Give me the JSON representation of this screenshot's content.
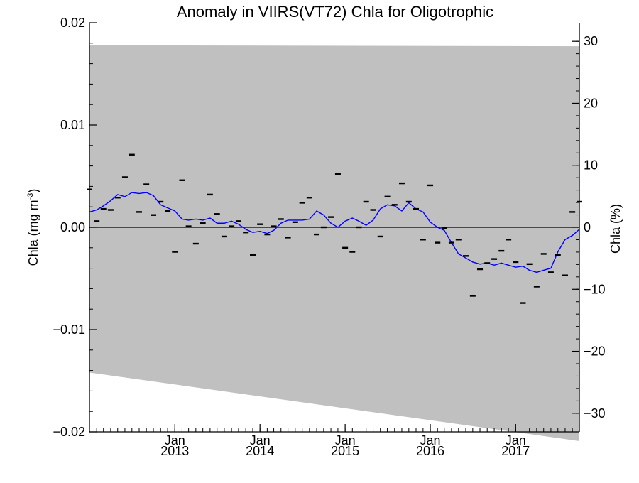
{
  "chart_data": {
    "type": "line",
    "title": "Anomaly in VIIRS(VT72) Chla for Oligotrophic",
    "ylabel": "Chla (mg m",
    "ylabel_sup": "-3",
    "ylabel_close": ")",
    "ylabel_right": "Chla (%)",
    "ylim": [
      -0.02,
      0.02
    ],
    "ylim_right": [
      -33,
      33
    ],
    "xlim": [
      "2012-01-01",
      "2017-10-01"
    ],
    "y_ticks": [
      "0.02",
      "0.01",
      "0.00",
      "-0.01",
      "-0.02"
    ],
    "y_tick_values": [
      0.02,
      0.01,
      0.0,
      -0.01,
      -0.02
    ],
    "y_right_ticks": [
      "30",
      "20",
      "10",
      "0",
      "-10",
      "-20",
      "-30"
    ],
    "y_right_tick_values": [
      30,
      20,
      10,
      0,
      -10,
      -20,
      -30
    ],
    "x_ticks": [
      {
        "month": "Jan",
        "year": "2013",
        "date": "2013-01-01"
      },
      {
        "month": "Jan",
        "year": "2014",
        "date": "2014-01-01"
      },
      {
        "month": "Jan",
        "year": "2015",
        "date": "2015-01-01"
      },
      {
        "month": "Jan",
        "year": "2016",
        "date": "2016-01-01"
      },
      {
        "month": "Jan",
        "year": "2017",
        "date": "2017-01-01"
      }
    ],
    "grid": false,
    "band": {
      "name": "uncertainty",
      "color": "#c0c0c0",
      "upper": [
        {
          "x": "2012-01-01",
          "y": 0.0178
        },
        {
          "x": "2017-10-01",
          "y": 0.0177
        }
      ],
      "lower": [
        {
          "x": "2012-01-01",
          "y": -0.0142
        },
        {
          "x": "2017-10-01",
          "y": -0.0209
        }
      ]
    },
    "zero_line": 0.0,
    "series": [
      {
        "kind": "line",
        "color": "#0000ff",
        "points": [
          {
            "x": "2012-01-01",
            "y": 0.0015
          },
          {
            "x": "2012-02-01",
            "y": 0.0017
          },
          {
            "x": "2012-03-01",
            "y": 0.0021
          },
          {
            "x": "2012-04-01",
            "y": 0.0026
          },
          {
            "x": "2012-05-01",
            "y": 0.0032
          },
          {
            "x": "2012-06-01",
            "y": 0.003
          },
          {
            "x": "2012-07-01",
            "y": 0.0034
          },
          {
            "x": "2012-08-01",
            "y": 0.0033
          },
          {
            "x": "2012-09-01",
            "y": 0.0034
          },
          {
            "x": "2012-10-01",
            "y": 0.0031
          },
          {
            "x": "2012-11-01",
            "y": 0.0022
          },
          {
            "x": "2012-12-01",
            "y": 0.0019
          },
          {
            "x": "2013-01-01",
            "y": 0.0016
          },
          {
            "x": "2013-02-01",
            "y": 0.0008
          },
          {
            "x": "2013-03-01",
            "y": 0.0007
          },
          {
            "x": "2013-04-01",
            "y": 0.0008
          },
          {
            "x": "2013-05-01",
            "y": 0.0007
          },
          {
            "x": "2013-06-01",
            "y": 0.0009
          },
          {
            "x": "2013-07-01",
            "y": 0.0004
          },
          {
            "x": "2013-08-01",
            "y": 0.0004
          },
          {
            "x": "2013-09-01",
            "y": 0.0006
          },
          {
            "x": "2013-10-01",
            "y": 0.0003
          },
          {
            "x": "2013-11-01",
            "y": -0.0002
          },
          {
            "x": "2013-12-01",
            "y": -0.0005
          },
          {
            "x": "2014-01-01",
            "y": -0.0004
          },
          {
            "x": "2014-02-01",
            "y": -0.0006
          },
          {
            "x": "2014-03-01",
            "y": -0.0003
          },
          {
            "x": "2014-04-01",
            "y": 0.0004
          },
          {
            "x": "2014-05-01",
            "y": 0.0007
          },
          {
            "x": "2014-06-01",
            "y": 0.0007
          },
          {
            "x": "2014-07-01",
            "y": 0.0007
          },
          {
            "x": "2014-08-01",
            "y": 0.0008
          },
          {
            "x": "2014-09-01",
            "y": 0.0016
          },
          {
            "x": "2014-10-01",
            "y": 0.0012
          },
          {
            "x": "2014-11-01",
            "y": 0.0004
          },
          {
            "x": "2014-12-01",
            "y": 0.0
          },
          {
            "x": "2015-01-01",
            "y": 0.0006
          },
          {
            "x": "2015-02-01",
            "y": 0.0009
          },
          {
            "x": "2015-03-01",
            "y": 0.0006
          },
          {
            "x": "2015-04-01",
            "y": 0.0002
          },
          {
            "x": "2015-05-01",
            "y": 0.0007
          },
          {
            "x": "2015-06-01",
            "y": 0.0018
          },
          {
            "x": "2015-07-01",
            "y": 0.0022
          },
          {
            "x": "2015-08-01",
            "y": 0.0021
          },
          {
            "x": "2015-09-01",
            "y": 0.0016
          },
          {
            "x": "2015-10-01",
            "y": 0.0024
          },
          {
            "x": "2015-11-01",
            "y": 0.0018
          },
          {
            "x": "2015-12-01",
            "y": 0.0015
          },
          {
            "x": "2016-01-01",
            "y": 0.0005
          },
          {
            "x": "2016-02-01",
            "y": 0.0
          },
          {
            "x": "2016-03-01",
            "y": -0.0003
          },
          {
            "x": "2016-04-01",
            "y": -0.0015
          },
          {
            "x": "2016-05-01",
            "y": -0.0026
          },
          {
            "x": "2016-06-01",
            "y": -0.003
          },
          {
            "x": "2016-07-01",
            "y": -0.0034
          },
          {
            "x": "2016-08-01",
            "y": -0.0036
          },
          {
            "x": "2016-09-01",
            "y": -0.0035
          },
          {
            "x": "2016-10-01",
            "y": -0.0037
          },
          {
            "x": "2016-11-01",
            "y": -0.0035
          },
          {
            "x": "2016-12-01",
            "y": -0.0037
          },
          {
            "x": "2017-01-01",
            "y": -0.0039
          },
          {
            "x": "2017-02-01",
            "y": -0.0038
          },
          {
            "x": "2017-03-01",
            "y": -0.0042
          },
          {
            "x": "2017-04-01",
            "y": -0.0044
          },
          {
            "x": "2017-05-01",
            "y": -0.0042
          },
          {
            "x": "2017-06-01",
            "y": -0.004
          },
          {
            "x": "2017-07-01",
            "y": -0.0024
          },
          {
            "x": "2017-08-01",
            "y": -0.0012
          },
          {
            "x": "2017-09-01",
            "y": -0.0008
          },
          {
            "x": "2017-10-01",
            "y": -0.0002
          }
        ]
      },
      {
        "kind": "dash-markers",
        "color": "#000000",
        "points": [
          {
            "x": "2012-01-01",
            "y": 0.0037
          },
          {
            "x": "2012-02-01",
            "y": 0.0006
          },
          {
            "x": "2012-03-01",
            "y": 0.0018
          },
          {
            "x": "2012-04-01",
            "y": 0.0017
          },
          {
            "x": "2012-05-01",
            "y": 0.0029
          },
          {
            "x": "2012-06-01",
            "y": 0.0049
          },
          {
            "x": "2012-07-01",
            "y": 0.0071
          },
          {
            "x": "2012-08-01",
            "y": 0.0015
          },
          {
            "x": "2012-09-01",
            "y": 0.0042
          },
          {
            "x": "2012-10-01",
            "y": 0.0012
          },
          {
            "x": "2012-11-01",
            "y": 0.0025
          },
          {
            "x": "2012-12-01",
            "y": 0.0016
          },
          {
            "x": "2013-01-01",
            "y": -0.0024
          },
          {
            "x": "2013-02-01",
            "y": 0.0046
          },
          {
            "x": "2013-03-01",
            "y": 0.0001
          },
          {
            "x": "2013-04-01",
            "y": -0.0016
          },
          {
            "x": "2013-05-01",
            "y": 0.0004
          },
          {
            "x": "2013-06-01",
            "y": 0.0032
          },
          {
            "x": "2013-07-01",
            "y": 0.0013
          },
          {
            "x": "2013-08-01",
            "y": -0.0009
          },
          {
            "x": "2013-09-01",
            "y": 0.0001
          },
          {
            "x": "2013-10-01",
            "y": 0.0006
          },
          {
            "x": "2013-11-01",
            "y": -0.0005
          },
          {
            "x": "2013-12-01",
            "y": -0.0027
          },
          {
            "x": "2014-01-01",
            "y": 0.0003
          },
          {
            "x": "2014-02-01",
            "y": -0.0007
          },
          {
            "x": "2014-03-01",
            "y": 0.0001
          },
          {
            "x": "2014-04-01",
            "y": 0.0008
          },
          {
            "x": "2014-05-01",
            "y": -0.001
          },
          {
            "x": "2014-06-01",
            "y": 0.0005
          },
          {
            "x": "2014-07-01",
            "y": 0.0024
          },
          {
            "x": "2014-08-01",
            "y": 0.0029
          },
          {
            "x": "2014-09-01",
            "y": -0.0007
          },
          {
            "x": "2014-10-01",
            "y": 0.0
          },
          {
            "x": "2014-11-01",
            "y": 0.001
          },
          {
            "x": "2014-12-01",
            "y": 0.0052
          },
          {
            "x": "2015-01-01",
            "y": -0.002
          },
          {
            "x": "2015-02-01",
            "y": -0.0024
          },
          {
            "x": "2015-03-01",
            "y": 0.0
          },
          {
            "x": "2015-04-01",
            "y": 0.0025
          },
          {
            "x": "2015-05-01",
            "y": 0.0017
          },
          {
            "x": "2015-06-01",
            "y": -0.0009
          },
          {
            "x": "2015-07-01",
            "y": 0.003
          },
          {
            "x": "2015-08-01",
            "y": 0.0022
          },
          {
            "x": "2015-09-01",
            "y": 0.0043
          },
          {
            "x": "2015-10-01",
            "y": 0.0025
          },
          {
            "x": "2015-11-01",
            "y": 0.0018
          },
          {
            "x": "2015-12-01",
            "y": -0.0012
          },
          {
            "x": "2016-01-01",
            "y": 0.0041
          },
          {
            "x": "2016-02-01",
            "y": -0.0015
          },
          {
            "x": "2016-03-01",
            "y": -0.0001
          },
          {
            "x": "2016-04-01",
            "y": -0.0015
          },
          {
            "x": "2016-05-01",
            "y": -0.0012
          },
          {
            "x": "2016-06-01",
            "y": -0.0028
          },
          {
            "x": "2016-07-01",
            "y": -0.0067
          },
          {
            "x": "2016-08-01",
            "y": -0.0041
          },
          {
            "x": "2016-09-01",
            "y": -0.0035
          },
          {
            "x": "2016-10-01",
            "y": -0.0031
          },
          {
            "x": "2016-11-01",
            "y": -0.0023
          },
          {
            "x": "2016-12-01",
            "y": -0.0012
          },
          {
            "x": "2017-01-01",
            "y": -0.0034
          },
          {
            "x": "2017-02-01",
            "y": -0.0074
          },
          {
            "x": "2017-03-01",
            "y": -0.0036
          },
          {
            "x": "2017-04-01",
            "y": -0.0058
          },
          {
            "x": "2017-05-01",
            "y": -0.0026
          },
          {
            "x": "2017-06-01",
            "y": -0.0044
          },
          {
            "x": "2017-07-01",
            "y": -0.0027
          },
          {
            "x": "2017-08-01",
            "y": -0.0047
          },
          {
            "x": "2017-09-01",
            "y": 0.0015
          },
          {
            "x": "2017-10-01",
            "y": 0.0025
          }
        ]
      }
    ]
  }
}
